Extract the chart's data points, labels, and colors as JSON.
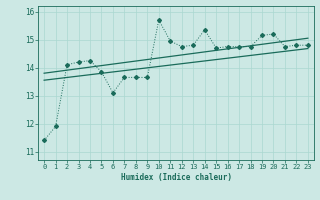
{
  "xlabel": "Humidex (Indice chaleur)",
  "ylabel": "",
  "background_color": "#cce8e4",
  "line_color": "#1a6b5a",
  "xlim": [
    -0.5,
    23.5
  ],
  "ylim": [
    10.7,
    16.2
  ],
  "yticks": [
    11,
    12,
    13,
    14,
    15,
    16
  ],
  "xticks": [
    0,
    1,
    2,
    3,
    4,
    5,
    6,
    7,
    8,
    9,
    10,
    11,
    12,
    13,
    14,
    15,
    16,
    17,
    18,
    19,
    20,
    21,
    22,
    23
  ],
  "line1_x": [
    0,
    1,
    2,
    3,
    4,
    5,
    6,
    7,
    8,
    9,
    10,
    11,
    12,
    13,
    14,
    15,
    16,
    17,
    18,
    19,
    20,
    21,
    22,
    23
  ],
  "line1_y": [
    11.4,
    11.9,
    14.1,
    14.2,
    14.25,
    13.85,
    13.1,
    13.65,
    13.65,
    13.65,
    15.7,
    14.95,
    14.75,
    14.8,
    15.35,
    14.7,
    14.75,
    14.75,
    14.75,
    15.15,
    15.2,
    14.75,
    14.8,
    14.8
  ],
  "trend1_x": [
    0,
    23
  ],
  "trend1_y": [
    13.55,
    14.68
  ],
  "trend2_x": [
    0,
    23
  ],
  "trend2_y": [
    13.8,
    15.05
  ],
  "grid_color": "#aad8d0"
}
